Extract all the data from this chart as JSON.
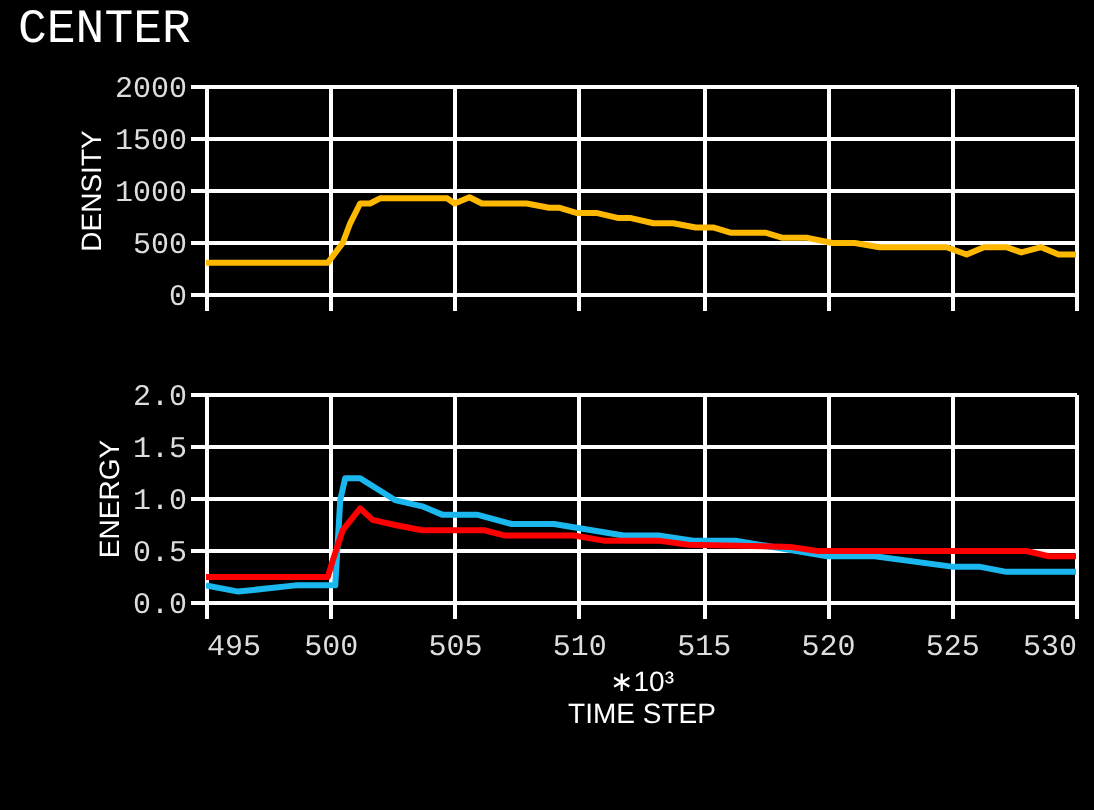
{
  "chart_data": [
    {
      "type": "line",
      "title": "CENTER",
      "ylabel": "DENSITY",
      "xlim": [
        495,
        530
      ],
      "xticks": [
        495,
        500,
        505,
        510,
        515,
        520,
        525,
        530
      ],
      "ylim": [
        0,
        2000
      ],
      "yticks": [
        0,
        500,
        1000,
        1500,
        2000
      ],
      "grid": true,
      "tick_labels": "y",
      "series": [
        {
          "color": "#ffb800",
          "x": [
            495,
            499.9,
            500.5,
            500.8,
            501.2,
            501.6,
            502,
            504.7,
            505,
            505.6,
            506.1,
            507.9,
            508.8,
            509.2,
            509.9,
            510.7,
            511.6,
            512.1,
            513,
            513.8,
            514.7,
            515.4,
            516.1,
            517.5,
            518.2,
            519.2,
            520.2,
            521.1,
            522.1,
            524.8,
            525.6,
            526.3,
            527.2,
            527.8,
            528.6,
            529.3,
            530
          ],
          "values": [
            300,
            300,
            490,
            680,
            870,
            870,
            920,
            920,
            870,
            930,
            870,
            870,
            830,
            830,
            780,
            780,
            730,
            730,
            680,
            680,
            640,
            640,
            590,
            590,
            540,
            540,
            490,
            490,
            450,
            450,
            380,
            450,
            450,
            400,
            450,
            380,
            380
          ]
        }
      ]
    },
    {
      "type": "line",
      "ylabel": "ENERGY",
      "xlabel": "TIME STEP",
      "annotations": [
        "∗10³"
      ],
      "xlim": [
        495,
        530
      ],
      "xticks": [
        495,
        500,
        505,
        510,
        515,
        520,
        525,
        530
      ],
      "ylim": [
        0,
        2
      ],
      "yticks": [
        {
          "value": 0,
          "label": "0.0"
        },
        0.5,
        {
          "value": 1,
          "label": "1.0"
        },
        1.5,
        {
          "value": 2,
          "label": "2.0"
        }
      ],
      "grid": true,
      "series": [
        {
          "color": "#1ab8ef",
          "x": [
            495,
            496.3,
            498.6,
            500.2,
            500.4,
            500.6,
            501.2,
            502.6,
            503.7,
            504.5,
            505.9,
            507.3,
            509,
            511.8,
            513.2,
            514.6,
            516.3,
            520,
            521.9,
            525,
            526.1,
            527.2,
            530
          ],
          "values": [
            0.16,
            0.1,
            0.16,
            0.16,
            0.98,
            1.19,
            1.19,
            0.98,
            0.92,
            0.84,
            0.84,
            0.75,
            0.75,
            0.64,
            0.64,
            0.59,
            0.59,
            0.44,
            0.44,
            0.34,
            0.34,
            0.29,
            0.29
          ]
        },
        {
          "color": "#ff0000",
          "x": [
            495,
            499.9,
            500.1,
            500.5,
            501.2,
            501.7,
            502.6,
            503.7,
            506.2,
            507,
            509.8,
            511,
            513.2,
            514.4,
            518.5,
            519.6,
            528,
            528.9,
            530
          ],
          "values": [
            0.24,
            0.24,
            0.4,
            0.69,
            0.9,
            0.79,
            0.74,
            0.69,
            0.69,
            0.64,
            0.64,
            0.59,
            0.59,
            0.55,
            0.53,
            0.49,
            0.49,
            0.44,
            0.44
          ]
        }
      ]
    }
  ]
}
